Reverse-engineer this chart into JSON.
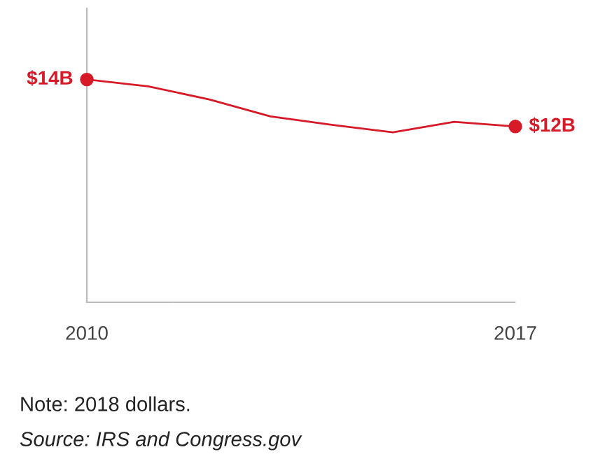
{
  "chart_data": {
    "type": "line",
    "x": [
      2010,
      2011,
      2012,
      2013,
      2014,
      2015,
      2016,
      2017
    ],
    "xlim": [
      2010,
      2017
    ],
    "xticks": [
      2010,
      2017
    ],
    "series": [
      {
        "color": "#d71a28",
        "values": [
          14,
          13.71,
          13.15,
          12.43,
          12.07,
          11.75,
          12.2,
          12
        ],
        "value_labels": [
          "$14B",
          null,
          null,
          null,
          null,
          null,
          null,
          "$12B"
        ]
      }
    ],
    "grid": false,
    "legend": false,
    "annotations": [
      "Note: 2018 dollars.",
      "Source: IRS and Congress.gov"
    ]
  }
}
